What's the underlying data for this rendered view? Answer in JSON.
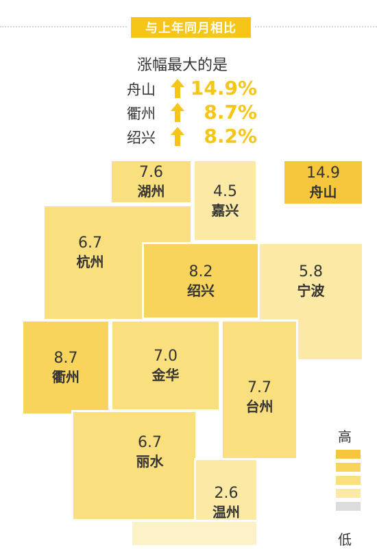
{
  "header": {
    "badge": "与上年同月相比"
  },
  "summary": {
    "title": "涨幅最大的是",
    "rows": [
      {
        "city": "舟山",
        "value": "14.9%"
      },
      {
        "city": "衢州",
        "value": "8.7%"
      },
      {
        "city": "绍兴",
        "value": "8.2%"
      }
    ]
  },
  "colors": {
    "badge": "#f5c518",
    "highlight_text": "#f5c518",
    "level_1": "#f6c73c",
    "level_2": "#f8d45c",
    "level_3": "#fadf7e",
    "level_4": "#fce9a6",
    "level_5": "#fdf1c8"
  },
  "legend": {
    "high": "高",
    "low": "低",
    "swatches": [
      "#f6c73c",
      "#f8d45c",
      "#fadf7e",
      "#fce9a6",
      "#dcdcdc"
    ]
  },
  "chart_data": {
    "type": "heatmap",
    "title": "与上年同月相比",
    "unit": "%",
    "regions": [
      {
        "name": "湖州",
        "value": 7.6
      },
      {
        "name": "嘉兴",
        "value": 4.5
      },
      {
        "name": "舟山",
        "value": 14.9
      },
      {
        "name": "杭州",
        "value": 6.7
      },
      {
        "name": "绍兴",
        "value": 8.2
      },
      {
        "name": "宁波",
        "value": 5.8
      },
      {
        "name": "衢州",
        "value": 8.7
      },
      {
        "name": "金华",
        "value": 7.0
      },
      {
        "name": "台州",
        "value": 7.7
      },
      {
        "name": "丽水",
        "value": 6.7
      },
      {
        "name": "温州",
        "value": 2.6
      }
    ]
  }
}
